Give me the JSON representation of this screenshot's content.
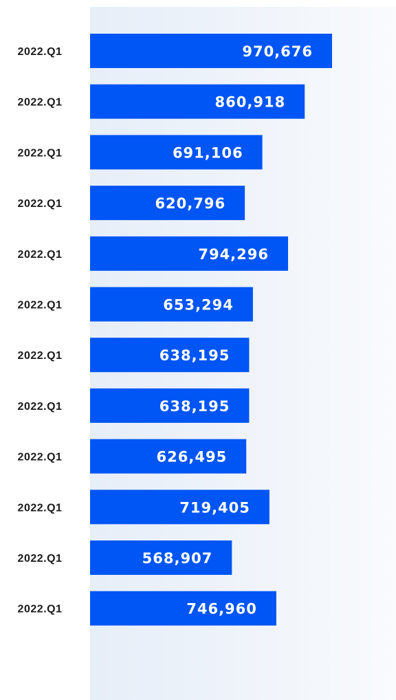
{
  "chart_data": {
    "type": "bar",
    "orientation": "horizontal",
    "categories": [
      "2022.Q1",
      "2022.Q1",
      "2022.Q1",
      "2022.Q1",
      "2022.Q1",
      "2022.Q1",
      "2022.Q1",
      "2022.Q1",
      "2022.Q1",
      "2022.Q1",
      "2022.Q1",
      "2022.Q1"
    ],
    "values": [
      970676,
      860918,
      691106,
      620796,
      794296,
      653294,
      638195,
      638195,
      626495,
      719405,
      568907,
      746960
    ],
    "value_labels": [
      "970,676",
      "860,918",
      "691,106",
      "620,796",
      "794,296",
      "653,294",
      "638,195",
      "638,195",
      "626,495",
      "719,405",
      "568,907",
      "746,960"
    ],
    "title": "",
    "xlabel": "",
    "ylabel": "",
    "grid": false,
    "legend": "none",
    "bar_color": "#0055f5",
    "label_color": "#ffffff",
    "category_color": "#1a1a1a"
  }
}
